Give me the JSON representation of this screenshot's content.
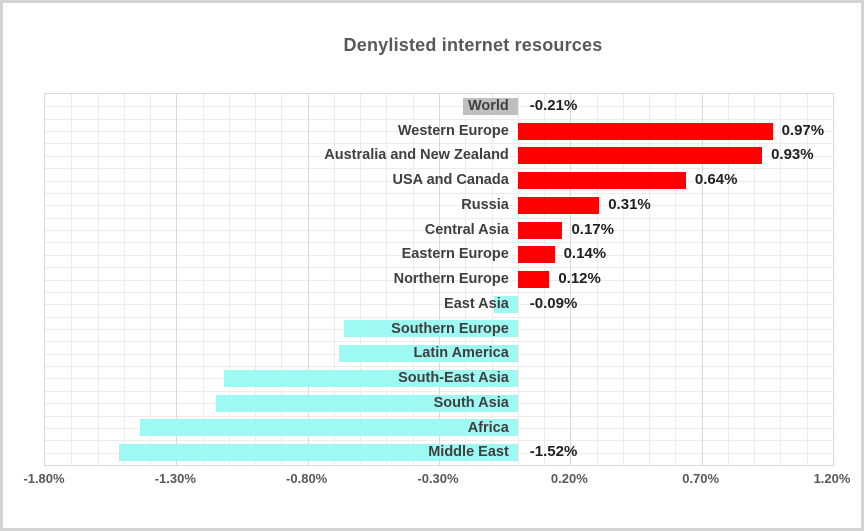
{
  "title": "Denylisted internet resources",
  "colors": {
    "title_text": "#595959",
    "axis_text": "#595959",
    "category_text": "#3F3F3F",
    "value_text": "#1F1F1F",
    "grid_minor": "#ECECEC",
    "grid_major": "#D9D9D9",
    "bars": {
      "red": "#FF0000",
      "cyan": "#9FF9F3",
      "gray": "#BFBFBF"
    }
  },
  "chart_data": {
    "type": "bar",
    "orientation": "horizontal",
    "title": "Denylisted internet resources",
    "categories": [
      "World",
      "Western Europe",
      "Australia and New Zealand",
      "USA and Canada",
      "Russia",
      "Central Asia",
      "Eastern Europe",
      "Northern Europe",
      "East Asia",
      "Southern Europe",
      "Latin America",
      "South-East Asia",
      "South Asia",
      "Africa",
      "Middle East"
    ],
    "values": [
      -0.21,
      0.97,
      0.93,
      0.64,
      0.31,
      0.17,
      0.14,
      0.12,
      -0.09,
      -0.66,
      -0.68,
      -1.12,
      -1.15,
      -1.44,
      -1.52
    ],
    "data_labels": [
      "-0.21%",
      "0.97%",
      "0.93%",
      "0.64%",
      "0.31%",
      "0.17%",
      "0.14%",
      "0.12%",
      "-0.09%",
      null,
      null,
      null,
      null,
      null,
      "-1.52%"
    ],
    "bar_colors": [
      "gray",
      "red",
      "red",
      "red",
      "red",
      "red",
      "red",
      "red",
      "cyan",
      "cyan",
      "cyan",
      "cyan",
      "cyan",
      "cyan",
      "cyan"
    ],
    "xlim": [
      -1.8,
      1.2
    ],
    "x_ticks": [
      "-1.80%",
      "-1.30%",
      "-0.80%",
      "-0.30%",
      "0.20%",
      "0.70%",
      "1.20%"
    ],
    "x_tick_values": [
      -1.8,
      -1.3,
      -0.8,
      -0.3,
      0.2,
      0.7,
      1.2
    ],
    "minor_grid_step": 0.1,
    "grid": true,
    "legend": "none"
  }
}
